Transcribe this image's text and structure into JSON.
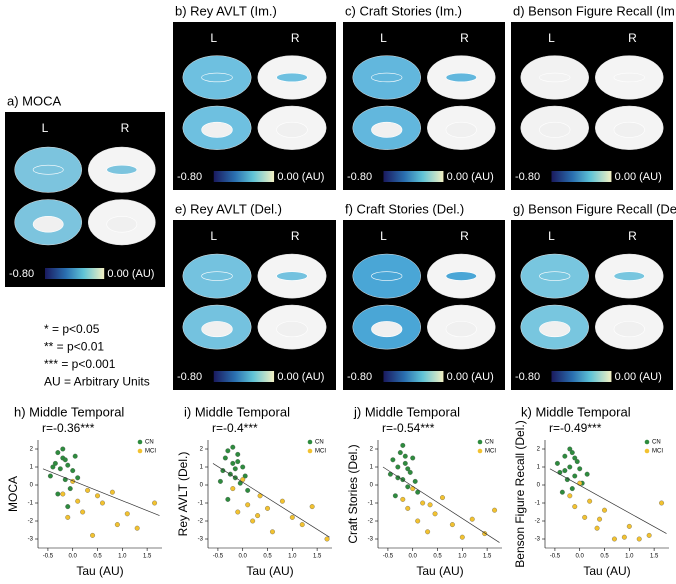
{
  "brain_panels": [
    {
      "title": "a) MOCA",
      "left_label": "L",
      "right_label": "R",
      "scale_min": "-0.80",
      "scale_max": "0.00 (AU)",
      "color": "#7cc4de"
    },
    {
      "title": "b) Rey AVLT (Im.)",
      "left_label": "L",
      "right_label": "R",
      "scale_min": "-0.80",
      "scale_max": "0.00 (AU)",
      "color": "#6ec0e0"
    },
    {
      "title": "c) Craft Stories (Im.)",
      "left_label": "L",
      "right_label": "R",
      "scale_min": "-0.80",
      "scale_max": "0.00 (AU)",
      "color": "#62b7dd"
    },
    {
      "title": "d) Benson Figure Recall (Im.)",
      "left_label": "L",
      "right_label": "R",
      "scale_min": "-0.80",
      "scale_max": "0.00 (AU)",
      "color": "#f2f2f2"
    },
    {
      "title": "e) Rey AVLT (Del.)",
      "left_label": "L",
      "right_label": "R",
      "scale_min": "-0.80",
      "scale_max": "0.00 (AU)",
      "color": "#74c2df"
    },
    {
      "title": "f) Craft Stories (Del.)",
      "left_label": "L",
      "right_label": "R",
      "scale_min": "-0.80",
      "scale_max": "0.00 (AU)",
      "color": "#4aa6d6"
    },
    {
      "title": "g) Benson Figure Recall (Del.)",
      "left_label": "L",
      "right_label": "R",
      "scale_min": "-0.80",
      "scale_max": "0.00 (AU)",
      "color": "#78c6df"
    }
  ],
  "notes": [
    "* = p<0.05",
    "** = p<0.01",
    "*** = p<0.001",
    "AU = Arbitrary Units"
  ],
  "chart_data": [
    {
      "type": "scatter",
      "title": "h) Middle Temporal",
      "annotation": "r=-0.36***",
      "xlabel": "Tau (AU)",
      "ylabel": "MOCA",
      "xlim": [
        -0.7,
        1.8
      ],
      "xticks": [
        -0.5,
        {
          "value": 0,
          "label": "0.0"
        },
        0.5,
        {
          "value": 1,
          "label": "1.0"
        },
        1.5
      ],
      "ylim": [
        -3.5,
        2.5
      ],
      "yticks": [
        -3,
        -2,
        -1,
        0,
        1,
        2
      ],
      "series": [
        {
          "name": "CN",
          "color": "#2e8b3e",
          "x": [
            -0.45,
            -0.35,
            -0.3,
            -0.25,
            -0.2,
            -0.15,
            -0.1,
            -0.05,
            0,
            0.05,
            -0.3,
            -0.2,
            -0.1,
            0.1,
            -0.4,
            -0.15
          ],
          "values": [
            0.5,
            1.2,
            1.8,
            0.9,
            1.5,
            0.3,
            1.1,
            -0.2,
            0.8,
            1.6,
            -0.5,
            2.0,
            -1.2,
            0.4,
            1.0,
            1.4
          ]
        },
        {
          "name": "MCI",
          "color": "#f2c230",
          "x": [
            -0.2,
            -0.1,
            0,
            0.1,
            0.2,
            0.3,
            0.4,
            0.6,
            0.8,
            0.9,
            1.1,
            1.3,
            1.65,
            0.5
          ],
          "values": [
            -0.5,
            -1.8,
            0.2,
            -0.9,
            -1.5,
            -0.3,
            -2.8,
            -1.0,
            -0.4,
            -2.2,
            -1.6,
            -2.4,
            -1.0,
            -0.6
          ]
        }
      ],
      "fit": {
        "x": [
          -0.6,
          1.75
        ],
        "y": [
          0.9,
          -1.7
        ]
      }
    },
    {
      "type": "scatter",
      "title": "i) Middle Temporal",
      "annotation": "r=-0.4***",
      "xlabel": "Tau (AU)",
      "ylabel": "Rey AVLT (Del.)",
      "xlim": [
        -0.7,
        1.8
      ],
      "xticks": [
        -0.5,
        {
          "value": 0,
          "label": "0.0"
        },
        0.5,
        {
          "value": 1,
          "label": "1.0"
        },
        1.5
      ],
      "ylim": [
        -3.5,
        2.5
      ],
      "yticks": [
        -3,
        -2,
        -1,
        0,
        1,
        2
      ],
      "series": [
        {
          "name": "CN",
          "color": "#2e8b3e",
          "x": [
            -0.4,
            -0.35,
            -0.3,
            -0.25,
            -0.2,
            -0.15,
            -0.1,
            -0.05,
            0,
            0.05,
            -0.3,
            -0.2,
            -0.1,
            0.1,
            -0.45,
            -0.15
          ],
          "values": [
            0.8,
            1.5,
            1.9,
            0.6,
            1.2,
            0.4,
            1.7,
            0.1,
            1.0,
            0.5,
            -0.8,
            2.1,
            1.3,
            -0.3,
            0.2,
            0.9
          ]
        },
        {
          "name": "MCI",
          "color": "#f2c230",
          "x": [
            -0.2,
            -0.1,
            0,
            0.1,
            0.2,
            0.35,
            0.5,
            0.6,
            0.8,
            1.0,
            1.2,
            1.4,
            1.7,
            0.3
          ],
          "values": [
            -0.2,
            -1.5,
            0.3,
            -1.1,
            -2.0,
            -0.6,
            -1.3,
            -2.6,
            -0.9,
            -1.8,
            -2.2,
            -1.2,
            -3.0,
            -1.7
          ]
        }
      ],
      "fit": {
        "x": [
          -0.6,
          1.75
        ],
        "y": [
          1.2,
          -2.9
        ]
      }
    },
    {
      "type": "scatter",
      "title": "j) Middle Temporal",
      "annotation": "r=-0.54***",
      "xlabel": "Tau (AU)",
      "ylabel": "Craft Stories (Del.)",
      "xlim": [
        -0.7,
        1.8
      ],
      "xticks": [
        -0.5,
        {
          "value": 0,
          "label": "0.0"
        },
        0.5,
        {
          "value": 1,
          "label": "1.0"
        },
        1.5
      ],
      "ylim": [
        -3.5,
        2.5
      ],
      "yticks": [
        -3,
        -2,
        -1,
        0,
        1,
        2
      ],
      "series": [
        {
          "name": "CN",
          "color": "#2e8b3e",
          "x": [
            -0.45,
            -0.4,
            -0.3,
            -0.25,
            -0.2,
            -0.15,
            -0.1,
            -0.05,
            0,
            0.05,
            -0.35,
            -0.2,
            -0.1,
            0.1,
            -0.3,
            -0.15
          ],
          "values": [
            0.6,
            1.4,
            1.0,
            1.8,
            0.3,
            1.2,
            -0.1,
            0.7,
            1.5,
            0.2,
            -0.6,
            2.2,
            0.9,
            -0.4,
            0.4,
            1.6
          ]
        },
        {
          "name": "MCI",
          "color": "#f2c230",
          "x": [
            -0.2,
            -0.1,
            0,
            0.1,
            0.2,
            0.3,
            0.45,
            0.6,
            0.8,
            1.0,
            1.2,
            1.45,
            1.65,
            0.35
          ],
          "values": [
            -0.8,
            -1.3,
            -0.2,
            -2.0,
            -1.0,
            -2.6,
            -1.6,
            -0.7,
            -2.2,
            -2.9,
            -1.9,
            -2.7,
            -1.4,
            -1.1
          ]
        }
      ],
      "fit": {
        "x": [
          -0.6,
          1.75
        ],
        "y": [
          1.0,
          -3.2
        ]
      }
    },
    {
      "type": "scatter",
      "title": "k) Middle Temporal",
      "annotation": "r=-0.49***",
      "xlabel": "Tau (AU)",
      "ylabel": "Benson Figure Recall (Del.)",
      "xlim": [
        -0.7,
        1.8
      ],
      "xticks": [
        -0.5,
        {
          "value": 0,
          "label": "0.0"
        },
        0.5,
        {
          "value": 1,
          "label": "1.0"
        },
        1.5
      ],
      "ylim": [
        -3.5,
        2.5
      ],
      "yticks": [
        -3,
        -2,
        -1,
        0,
        1,
        2
      ],
      "series": [
        {
          "name": "CN",
          "color": "#2e8b3e",
          "x": [
            -0.45,
            -0.4,
            -0.3,
            -0.25,
            -0.2,
            -0.15,
            -0.1,
            -0.05,
            0,
            0.05,
            -0.35,
            -0.2,
            -0.1,
            0.15,
            -0.3,
            -0.15
          ],
          "values": [
            1.2,
            0.7,
            1.6,
            0.3,
            1.0,
            1.8,
            0.5,
            1.3,
            0.9,
            0.1,
            -0.4,
            2.0,
            1.5,
            0.6,
            0.8,
            -0.2
          ]
        },
        {
          "name": "MCI",
          "color": "#f2c230",
          "x": [
            -0.2,
            -0.1,
            0,
            0.1,
            0.2,
            0.35,
            0.5,
            0.7,
            0.9,
            1.0,
            1.2,
            1.4,
            1.65,
            0.4
          ],
          "values": [
            -0.6,
            -1.2,
            0.1,
            -1.8,
            -0.9,
            -2.4,
            -1.4,
            -3.0,
            -2.9,
            -2.3,
            -3.0,
            -2.8,
            -1.0,
            -1.9
          ]
        }
      ],
      "fit": {
        "x": [
          -0.6,
          1.75
        ],
        "y": [
          0.9,
          -2.7
        ]
      }
    }
  ]
}
